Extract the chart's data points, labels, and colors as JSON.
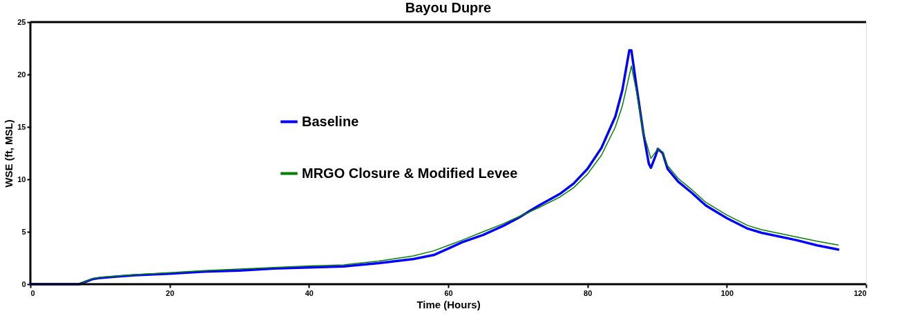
{
  "chart_data": {
    "type": "line",
    "title": "Bayou Dupre",
    "xlabel": "Time (Hours)",
    "ylabel": "WSE (ft, MSL)",
    "xlim": [
      0,
      120
    ],
    "xticks": [
      0,
      20,
      40,
      60,
      80,
      100,
      120
    ],
    "ylim": [
      0,
      25
    ],
    "yticks": [
      0,
      5,
      10,
      15,
      20,
      25
    ],
    "grid": false,
    "legend": "center",
    "marker": "none",
    "line_style": "solid",
    "series": [
      {
        "name": "Baseline",
        "color": "#0000ff",
        "x": [
          0,
          7,
          9,
          10,
          12,
          15,
          20,
          25,
          30,
          35,
          40,
          45,
          50,
          55,
          58,
          60,
          62,
          65,
          68,
          70,
          73,
          76,
          78,
          80,
          82,
          84,
          85,
          86.0,
          86.3,
          87,
          88,
          88.8,
          89.1,
          89.8,
          90.1,
          90.8,
          91.5,
          93,
          95,
          97,
          100,
          103,
          105,
          110,
          113,
          116
        ],
        "values": [
          0,
          0,
          0.5,
          0.6,
          0.7,
          0.85,
          1.0,
          1.2,
          1.3,
          1.5,
          1.6,
          1.7,
          2.0,
          2.4,
          2.8,
          3.4,
          4.0,
          4.7,
          5.6,
          6.3,
          7.5,
          8.6,
          9.6,
          11.0,
          13.0,
          16.0,
          18.5,
          22.3,
          22.3,
          19.0,
          14.5,
          11.5,
          11.1,
          12.3,
          12.9,
          12.5,
          11.0,
          9.8,
          8.7,
          7.5,
          6.3,
          5.3,
          4.9,
          4.2,
          3.7,
          3.3
        ]
      },
      {
        "name": "MRGO Closure & Modified Levee",
        "color": "#008000",
        "x": [
          0,
          7,
          9,
          10,
          15,
          20,
          25,
          30,
          35,
          40,
          45,
          50,
          55,
          58,
          60,
          62,
          65,
          68,
          70,
          73,
          76,
          78,
          80,
          82,
          84,
          85,
          86.3,
          87,
          88,
          89.1,
          90.1,
          90.8,
          91.5,
          93,
          95,
          97,
          100,
          103,
          105,
          110,
          113,
          116
        ],
        "values": [
          0,
          0,
          0.55,
          0.65,
          0.9,
          1.1,
          1.3,
          1.45,
          1.6,
          1.75,
          1.85,
          2.2,
          2.7,
          3.2,
          3.7,
          4.2,
          5.0,
          5.8,
          6.4,
          7.3,
          8.3,
          9.2,
          10.5,
          12.3,
          15.0,
          17.0,
          20.8,
          18.5,
          14.5,
          12.0,
          12.9,
          12.6,
          11.3,
          10.1,
          9.0,
          7.8,
          6.6,
          5.6,
          5.2,
          4.5,
          4.1,
          3.74
        ]
      }
    ]
  }
}
